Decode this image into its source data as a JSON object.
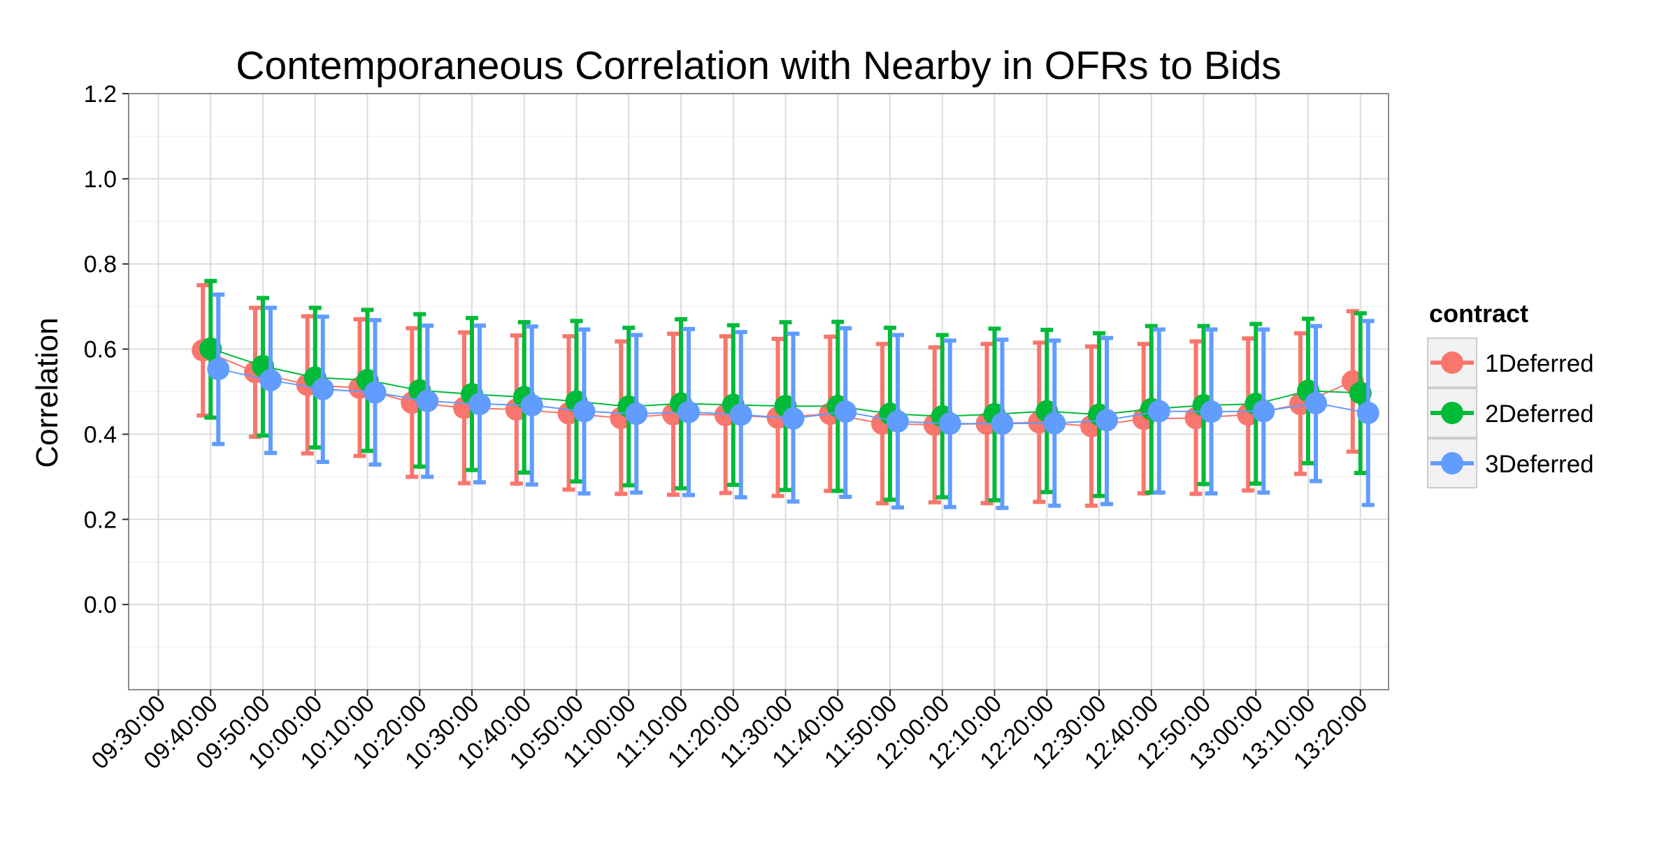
{
  "chart_data": {
    "type": "line",
    "title": "Contemporaneous Correlation with Nearby in OFRs to Bids",
    "xlabel": "",
    "ylabel": "Correlation",
    "ylim": [
      -0.2,
      1.2
    ],
    "yticks": [
      "0.0",
      "0.2",
      "0.4",
      "0.6",
      "0.8",
      "1.0",
      "1.2"
    ],
    "x_ticks": [
      "09:30:00",
      "09:40:00",
      "09:50:00",
      "10:00:00",
      "10:10:00",
      "10:20:00",
      "10:30:00",
      "10:40:00",
      "10:50:00",
      "11:00:00",
      "11:10:00",
      "11:20:00",
      "11:30:00",
      "11:40:00",
      "11:50:00",
      "12:00:00",
      "12:10:00",
      "12:20:00",
      "12:30:00",
      "12:40:00",
      "12:50:00",
      "13:00:00",
      "13:10:00",
      "13:20:00"
    ],
    "x": [
      "09:40:00",
      "09:50:00",
      "10:00:00",
      "10:10:00",
      "10:20:00",
      "10:30:00",
      "10:40:00",
      "10:50:00",
      "11:00:00",
      "11:10:00",
      "11:20:00",
      "11:30:00",
      "11:40:00",
      "11:50:00",
      "12:00:00",
      "12:10:00",
      "12:20:00",
      "12:30:00",
      "12:40:00",
      "12:50:00",
      "13:00:00",
      "13:10:00",
      "13:20:00"
    ],
    "grid": true,
    "legend": {
      "title": "contract",
      "placement": "right"
    },
    "series": [
      {
        "name": "1Deferred",
        "color": "#F8766D",
        "values": [
          0.597,
          0.546,
          0.516,
          0.509,
          0.474,
          0.462,
          0.458,
          0.449,
          0.438,
          0.447,
          0.445,
          0.439,
          0.448,
          0.425,
          0.422,
          0.425,
          0.428,
          0.419,
          0.436,
          0.438,
          0.446,
          0.471,
          0.524
        ],
        "upper": [
          0.75,
          0.697,
          0.677,
          0.67,
          0.649,
          0.639,
          0.632,
          0.63,
          0.618,
          0.636,
          0.63,
          0.624,
          0.629,
          0.612,
          0.604,
          0.612,
          0.615,
          0.606,
          0.612,
          0.618,
          0.625,
          0.637,
          0.689
        ],
        "lower": [
          0.444,
          0.394,
          0.355,
          0.349,
          0.3,
          0.285,
          0.284,
          0.27,
          0.26,
          0.258,
          0.262,
          0.255,
          0.267,
          0.238,
          0.24,
          0.238,
          0.241,
          0.232,
          0.261,
          0.26,
          0.268,
          0.307,
          0.359
        ]
      },
      {
        "name": "2Deferred",
        "color": "#00BA38",
        "values": [
          0.601,
          0.56,
          0.533,
          0.527,
          0.503,
          0.494,
          0.487,
          0.477,
          0.465,
          0.472,
          0.469,
          0.466,
          0.466,
          0.448,
          0.442,
          0.447,
          0.454,
          0.446,
          0.459,
          0.468,
          0.471,
          0.502,
          0.497
        ],
        "upper": [
          0.76,
          0.72,
          0.697,
          0.692,
          0.682,
          0.673,
          0.663,
          0.666,
          0.65,
          0.67,
          0.656,
          0.663,
          0.664,
          0.65,
          0.633,
          0.648,
          0.645,
          0.637,
          0.654,
          0.654,
          0.659,
          0.671,
          0.684
        ],
        "lower": [
          0.439,
          0.397,
          0.369,
          0.361,
          0.324,
          0.316,
          0.31,
          0.289,
          0.28,
          0.273,
          0.281,
          0.269,
          0.267,
          0.246,
          0.252,
          0.245,
          0.264,
          0.255,
          0.263,
          0.283,
          0.284,
          0.332,
          0.309
        ]
      },
      {
        "name": "3Deferred",
        "color": "#619CFF",
        "values": [
          0.553,
          0.527,
          0.506,
          0.498,
          0.478,
          0.471,
          0.468,
          0.454,
          0.448,
          0.452,
          0.446,
          0.437,
          0.453,
          0.43,
          0.425,
          0.425,
          0.426,
          0.433,
          0.454,
          0.453,
          0.454,
          0.473,
          0.45
        ],
        "upper": [
          0.728,
          0.697,
          0.676,
          0.668,
          0.655,
          0.655,
          0.653,
          0.646,
          0.633,
          0.647,
          0.64,
          0.636,
          0.649,
          0.633,
          0.62,
          0.622,
          0.62,
          0.626,
          0.646,
          0.646,
          0.646,
          0.654,
          0.666
        ],
        "lower": [
          0.377,
          0.356,
          0.335,
          0.329,
          0.3,
          0.287,
          0.282,
          0.261,
          0.263,
          0.257,
          0.252,
          0.242,
          0.253,
          0.228,
          0.229,
          0.227,
          0.232,
          0.236,
          0.263,
          0.261,
          0.263,
          0.29,
          0.234
        ]
      }
    ]
  }
}
